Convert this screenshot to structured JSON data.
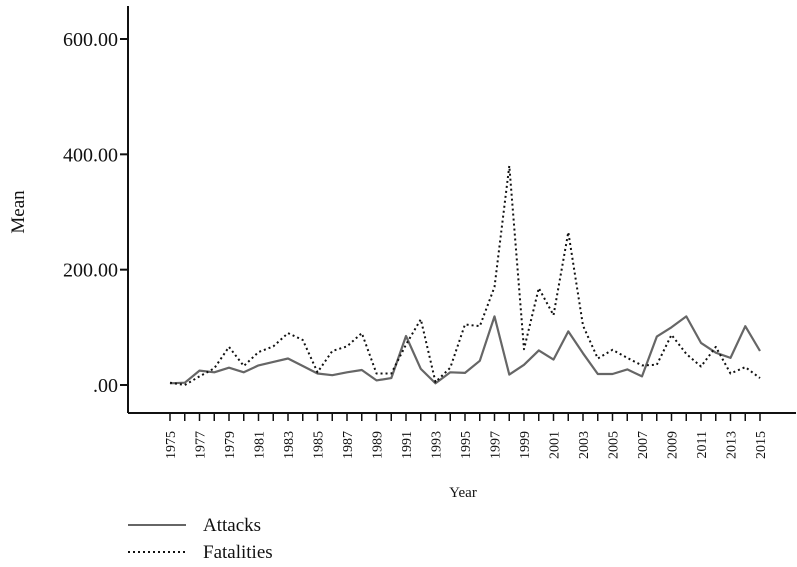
{
  "chart_data": {
    "type": "line",
    "title": "",
    "xlabel": "Year",
    "ylabel": "Mean",
    "ylim": [
      -50,
      650
    ],
    "yticks": [
      {
        "value": 0,
        "label": ".00"
      },
      {
        "value": 200,
        "label": "200.00"
      },
      {
        "value": 400,
        "label": "400.00"
      },
      {
        "value": 600,
        "label": "600.00"
      }
    ],
    "x": [
      1975,
      1976,
      1977,
      1978,
      1979,
      1980,
      1981,
      1982,
      1983,
      1984,
      1985,
      1986,
      1987,
      1988,
      1989,
      1990,
      1991,
      1992,
      1993,
      1994,
      1995,
      1996,
      1997,
      1998,
      1999,
      2000,
      2001,
      2002,
      2003,
      2004,
      2005,
      2006,
      2007,
      2008,
      2009,
      2010,
      2011,
      2012,
      2013,
      2014,
      2015
    ],
    "xticks": [
      "1975",
      "1977",
      "1979",
      "1981",
      "1983",
      "1985",
      "1987",
      "1989",
      "1991",
      "1993",
      "1995",
      "1997",
      "1999",
      "2001",
      "2003",
      "2005",
      "2007",
      "2009",
      "2011",
      "2013",
      "2015"
    ],
    "legend_position": "bottom-left",
    "series": [
      {
        "name": "Attacks",
        "style": "solid",
        "color": "#666666",
        "values": [
          3,
          4,
          25,
          22,
          30,
          22,
          34,
          40,
          46,
          33,
          20,
          17,
          22,
          26,
          8,
          12,
          85,
          28,
          3,
          22,
          21,
          42,
          119,
          18,
          35,
          60,
          44,
          93,
          55,
          19,
          19,
          27,
          15,
          84,
          100,
          119,
          73,
          56,
          47,
          102,
          59
        ]
      },
      {
        "name": "Fatalities",
        "style": "dotted",
        "color": "#111111",
        "values": [
          4,
          0,
          15,
          29,
          66,
          33,
          57,
          67,
          90,
          78,
          22,
          59,
          67,
          90,
          20,
          20,
          70,
          114,
          5,
          30,
          105,
          102,
          170,
          380,
          62,
          168,
          121,
          265,
          103,
          46,
          61,
          47,
          34,
          35,
          87,
          54,
          32,
          66,
          20,
          31,
          12
        ]
      }
    ]
  }
}
